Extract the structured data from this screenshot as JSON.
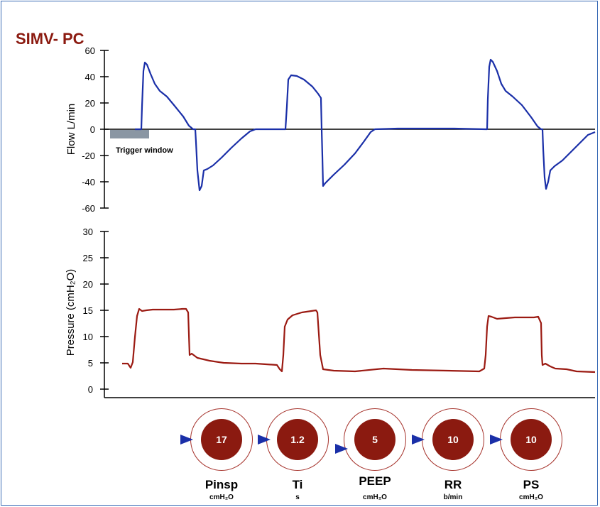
{
  "title": "SIMV- PC",
  "flow_chart": {
    "ylabel": "Flow L/min",
    "yticks": [
      "60",
      "40",
      "20",
      "0",
      "-20",
      "-40",
      "-60"
    ],
    "annotation": "Trigger window",
    "line_color": "#1a2fa8"
  },
  "pressure_chart": {
    "ylabel": "Pressure (cmH₂O)",
    "yticks": [
      "30",
      "25",
      "20",
      "15",
      "10",
      "5",
      "0"
    ],
    "line_color": "#9b1a12"
  },
  "controls": [
    {
      "label": "Pinsp",
      "value": "17",
      "unit": "cmH₂O"
    },
    {
      "label": "Ti",
      "value": "1.2",
      "unit": "s"
    },
    {
      "label": "PEEP",
      "value": "5",
      "unit": "cmH₂O"
    },
    {
      "label": "RR",
      "value": "10",
      "unit": "b/min"
    },
    {
      "label": "PS",
      "value": "10",
      "unit": "cmH₂O"
    }
  ],
  "colors": {
    "accent": "#8b1a10",
    "frame": "#3a6bb5",
    "arrow": "#1a2fa8"
  }
}
